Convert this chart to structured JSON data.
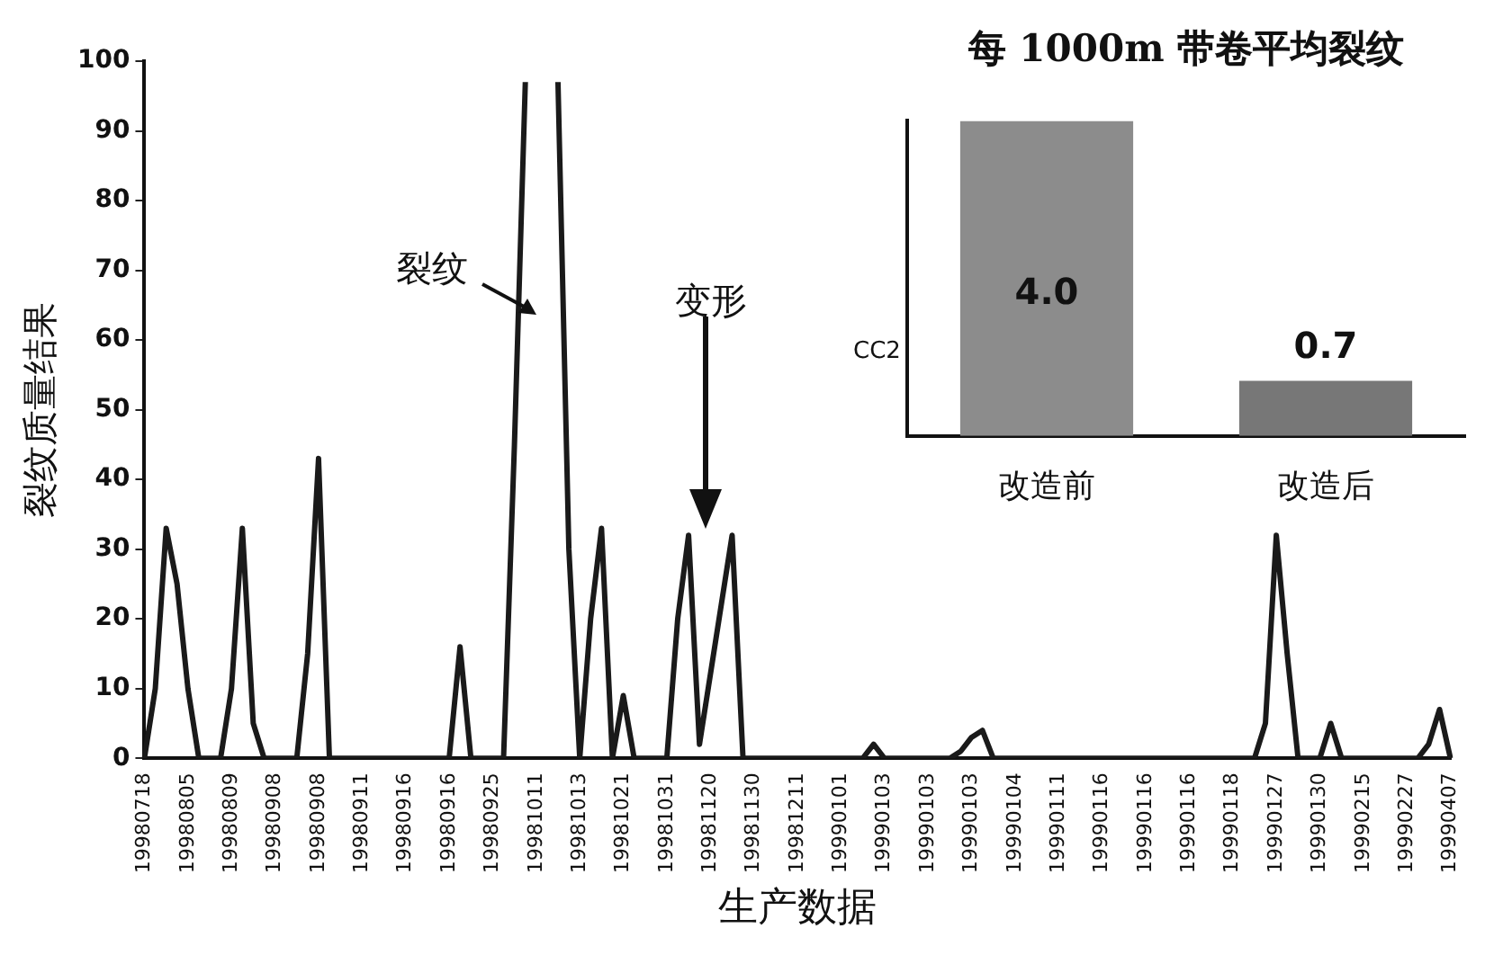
{
  "chart_data": [
    {
      "type": "line",
      "xlabel": "生产数据",
      "ylabel": "裂纹质量结果",
      "categories": [
        "19980718",
        null,
        null,
        null,
        "19980805",
        null,
        null,
        null,
        "19980809",
        null,
        null,
        null,
        "19980908",
        null,
        null,
        null,
        "19980908",
        null,
        null,
        null,
        "19980911",
        null,
        null,
        null,
        "19980916",
        null,
        null,
        null,
        "19980916",
        null,
        null,
        null,
        "19980925",
        null,
        null,
        null,
        "19981011",
        null,
        null,
        null,
        "19981013",
        null,
        null,
        null,
        "19981021",
        null,
        null,
        null,
        "19981031",
        null,
        null,
        null,
        "19981120",
        null,
        null,
        null,
        "19981130",
        null,
        null,
        null,
        "19981211",
        null,
        null,
        null,
        "19990101",
        null,
        null,
        null,
        "19990103",
        null,
        null,
        null,
        "19990103",
        null,
        null,
        null,
        "19990103",
        null,
        null,
        null,
        "19990104",
        null,
        null,
        null,
        "19990111",
        null,
        null,
        null,
        "19990116",
        null,
        null,
        null,
        "19990116",
        null,
        null,
        null,
        "19990116",
        null,
        null,
        null,
        "19990118",
        null,
        null,
        null,
        "19990127",
        null,
        null,
        null,
        "19990130",
        null,
        null,
        null,
        "19990215",
        null,
        null,
        null,
        "19990227",
        null,
        null,
        null,
        "19990407"
      ],
      "ylim": [
        0,
        100
      ],
      "yticks": [
        0,
        10,
        20,
        30,
        40,
        50,
        60,
        70,
        80,
        90,
        100
      ],
      "grid": false,
      "legend": false,
      "marker": "none",
      "line_style": "solid",
      "annotations": [
        "裂纹",
        "变形",
        "CC2"
      ],
      "series": [
        {
          "color": "#1a1a1a",
          "values": [
            0,
            10,
            33,
            25,
            10,
            0,
            0,
            0,
            10,
            33,
            5,
            0,
            0,
            0,
            0,
            15,
            43,
            0,
            0,
            0,
            0,
            0,
            0,
            0,
            0,
            0,
            0,
            0,
            0,
            16,
            0,
            0,
            0,
            0,
            45,
            97,
            null,
            null,
            97,
            30,
            0,
            20,
            33,
            0,
            9,
            0,
            0,
            0,
            0,
            20,
            32,
            2,
            12,
            22,
            32,
            0,
            0,
            0,
            0,
            0,
            0,
            0,
            0,
            0,
            0,
            0,
            0,
            2,
            0,
            0,
            0,
            0,
            0,
            0,
            0,
            1,
            3,
            4,
            0,
            0,
            0,
            0,
            0,
            0,
            0,
            0,
            0,
            0,
            0,
            0,
            0,
            0,
            0,
            0,
            0,
            0,
            0,
            0,
            0,
            0,
            0,
            0,
            0,
            5,
            32,
            15,
            0,
            0,
            0,
            5,
            0,
            0,
            0,
            0,
            0,
            0,
            0,
            0,
            2,
            7,
            0
          ]
        }
      ]
    },
    {
      "type": "bar",
      "title": "每 1000m 带卷平均裂纹",
      "categories": [
        "改造前",
        "改造后"
      ],
      "values": [
        4.0,
        0.7
      ],
      "value_labels": [
        "4.0",
        "0.7"
      ],
      "colors": [
        "#8c8c8c",
        "#777777"
      ],
      "legend": false
    }
  ]
}
